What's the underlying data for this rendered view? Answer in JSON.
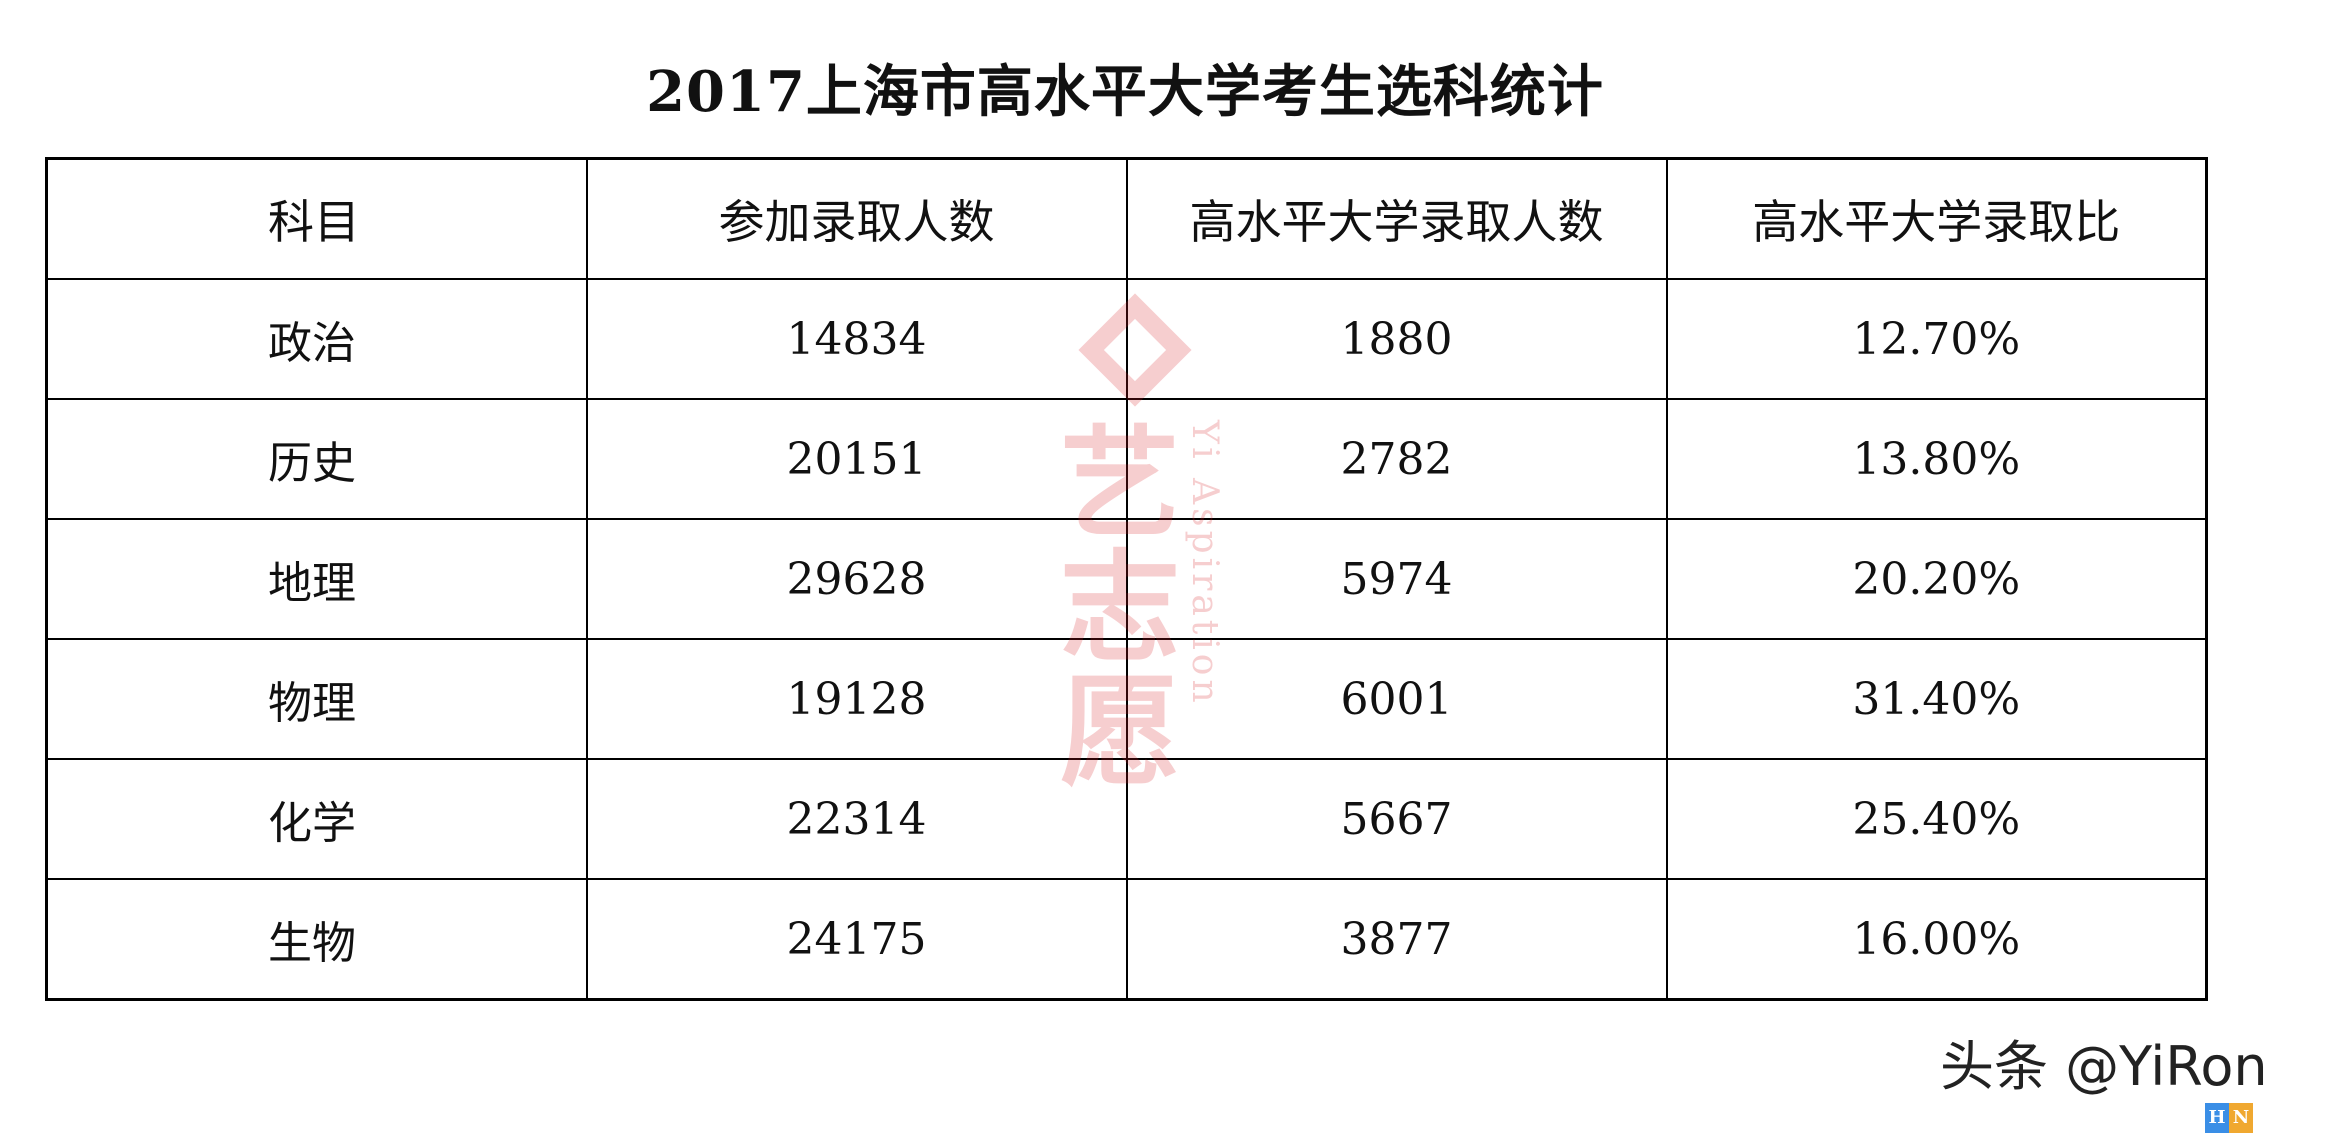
{
  "title": "2017上海市高水平大学考生选科统计",
  "table": {
    "headers": [
      "科目",
      "参加录取人数",
      "高水平大学录取人数",
      "高水平大学录取比"
    ],
    "rows": [
      [
        "政治",
        "14834",
        "1880",
        "12.70%"
      ],
      [
        "历史",
        "20151",
        "2782",
        "13.80%"
      ],
      [
        "地理",
        "29628",
        "5974",
        "20.20%"
      ],
      [
        "物理",
        "19128",
        "6001",
        "31.40%"
      ],
      [
        "化学",
        "22314",
        "5667",
        "25.40%"
      ],
      [
        "生物",
        "24175",
        "3877",
        "16.00%"
      ]
    ]
  },
  "watermark": {
    "cn": "艺志愿",
    "en": "Yi Aspiration",
    "color": "#d8232a"
  },
  "footer": {
    "source": "头条 @YiRon",
    "badge": [
      "H",
      "N"
    ],
    "badge_colors": [
      "#3a8ee6",
      "#f0a830"
    ]
  }
}
